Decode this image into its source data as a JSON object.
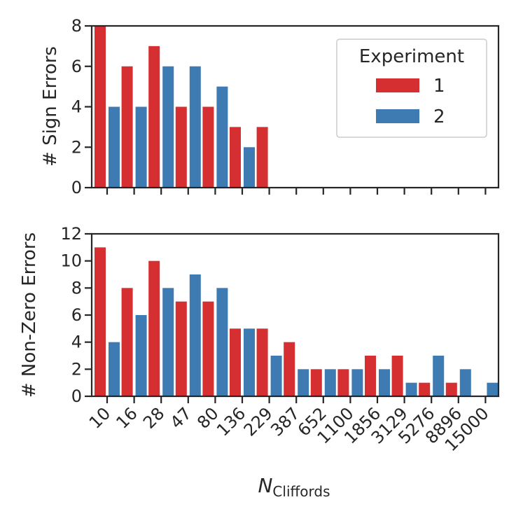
{
  "chart_data": [
    {
      "type": "bar",
      "panel": "top",
      "ylabel": "# Sign Errors",
      "ylim": [
        0,
        8
      ],
      "yticks": [
        0,
        2,
        4,
        6,
        8
      ],
      "categories": [
        "10",
        "16",
        "28",
        "47",
        "80",
        "136",
        "229",
        "387",
        "652",
        "1100",
        "1856",
        "3129",
        "5276",
        "8896",
        "15000"
      ],
      "series": [
        {
          "name": "1",
          "color": "#d62f32",
          "values": [
            8,
            6,
            7,
            4,
            4,
            3,
            3,
            0,
            0,
            0,
            0,
            0,
            0,
            0,
            0
          ]
        },
        {
          "name": "2",
          "color": "#3e7bb2",
          "values": [
            4,
            4,
            6,
            6,
            5,
            2,
            0,
            0,
            0,
            0,
            0,
            0,
            0,
            0,
            0
          ]
        }
      ],
      "legend": {
        "title": "Experiment",
        "placement": "top-right",
        "entries": [
          "1",
          "2"
        ]
      }
    },
    {
      "type": "bar",
      "panel": "bottom",
      "ylabel": "# Non-Zero Errors",
      "ylim": [
        0,
        12
      ],
      "yticks": [
        0,
        2,
        4,
        6,
        8,
        10,
        12
      ],
      "categories": [
        "10",
        "16",
        "28",
        "47",
        "80",
        "136",
        "229",
        "387",
        "652",
        "1100",
        "1856",
        "3129",
        "5276",
        "8896",
        "15000"
      ],
      "series": [
        {
          "name": "1",
          "color": "#d62f32",
          "values": [
            11,
            8,
            10,
            7,
            7,
            5,
            5,
            4,
            2,
            2,
            3,
            3,
            1,
            1,
            0
          ]
        },
        {
          "name": "2",
          "color": "#3e7bb2",
          "values": [
            4,
            6,
            8,
            9,
            8,
            5,
            3,
            2,
            2,
            2,
            2,
            1,
            3,
            2,
            1
          ]
        }
      ]
    }
  ],
  "xlabel": {
    "main": "N",
    "subscript": "Cliffords"
  }
}
